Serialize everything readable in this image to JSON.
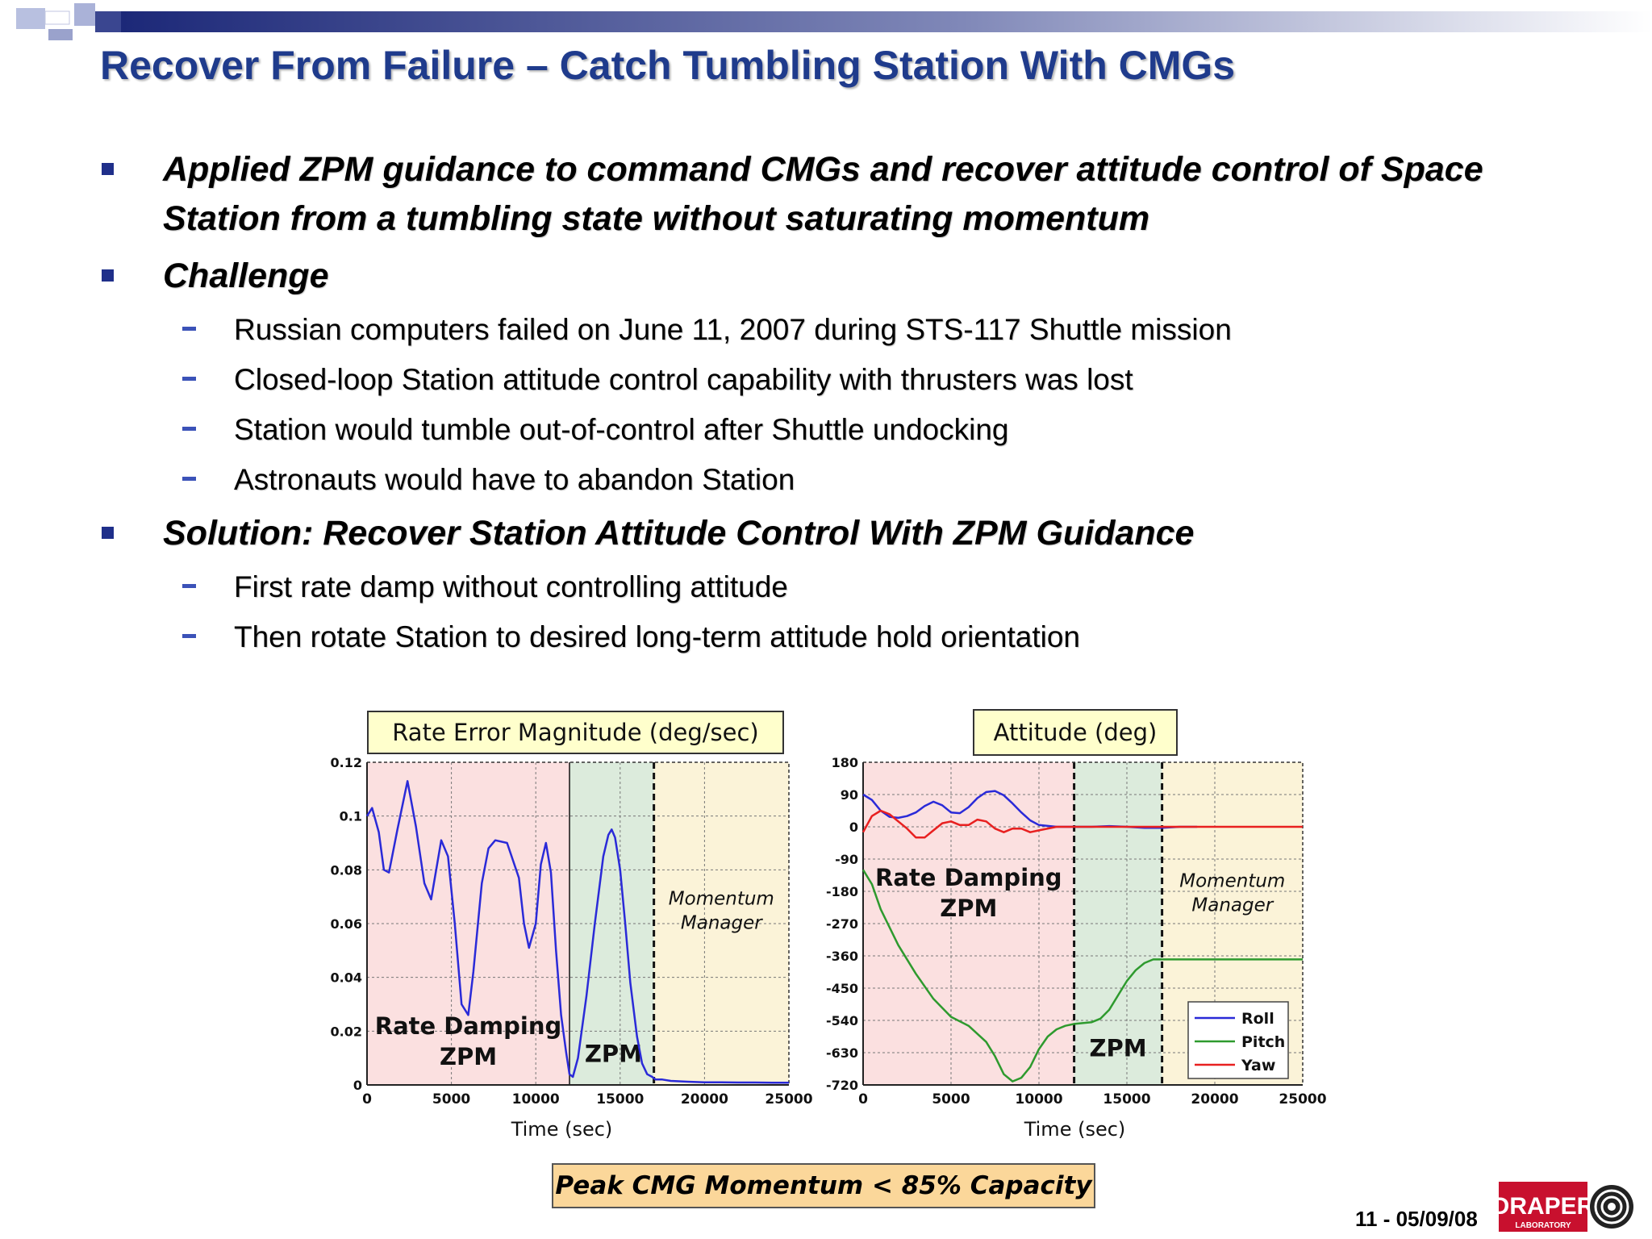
{
  "slide": {
    "title": "Recover From Failure – Catch Tumbling Station With CMGs",
    "bullets": [
      {
        "text": "Applied ZPM guidance to command CMGs and recover attitude control of Space Station from a tumbling state without saturating momentum",
        "subs": []
      },
      {
        "text": "Challenge",
        "subs": [
          "Russian computers failed on June 11, 2007 during STS-117 Shuttle mission",
          "Closed-loop Station attitude control capability with thrusters was lost",
          "Station would tumble out-of-control after Shuttle undocking",
          "Astronauts would have to abandon Station"
        ]
      },
      {
        "text": "Solution: Recover Station Attitude Control With ZPM Guidance",
        "subs": [
          "First rate damp without controlling attitude",
          "Then rotate Station to desired long-term attitude hold orientation"
        ]
      }
    ],
    "footer_box": "Peak CMG Momentum < 85% Capacity",
    "slide_number": "11 - 05/09/08",
    "logo_text": "DRAPER",
    "logo_subtext": "LABORATORY"
  },
  "colors": {
    "title": "#1f3b8c",
    "rate_damping_region": "#fbe0e0",
    "zpm_region": "#dcebdc",
    "momentum_manager_region": "#fbf3d8",
    "roll": "#2a2ad8",
    "pitch": "#2e9a2e",
    "yaw": "#e82020",
    "rate_line": "#2a2ad8"
  },
  "chart_data": [
    {
      "type": "line",
      "title": "Rate Error Magnitude (deg/sec)",
      "xlabel": "Time (sec)",
      "ylabel": "",
      "xlim": [
        0,
        25000
      ],
      "ylim": [
        0,
        0.12
      ],
      "xticks": [
        0,
        5000,
        10000,
        15000,
        20000,
        25000
      ],
      "yticks": [
        0,
        0.02,
        0.04,
        0.06,
        0.08,
        0.1,
        0.12
      ],
      "xtick_labels": [
        "0",
        "5000",
        "10000",
        "15000",
        "20000",
        "25000"
      ],
      "ytick_labels": [
        "0",
        "0.02",
        "0.04",
        "0.06",
        "0.08",
        "0.1",
        "0.12"
      ],
      "grid": true,
      "regions": [
        {
          "label": "Rate Damping ZPM",
          "lines": [
            "Rate Damping",
            "ZPM"
          ],
          "x0": 0,
          "x1": 12000,
          "kind": "rate_damping",
          "label_x": 6000,
          "label_y": 0.0075
        },
        {
          "label": "ZPM",
          "lines": [
            "ZPM"
          ],
          "x0": 12000,
          "x1": 17000,
          "kind": "zpm",
          "label_x": 14600,
          "label_y": 0.0085
        },
        {
          "label": "Momentum Manager",
          "lines": [
            "Momentum",
            "Manager"
          ],
          "x0": 17000,
          "x1": 25000,
          "kind": "momentum_manager",
          "label_x": 21000,
          "label_y": 0.058
        }
      ],
      "series": [
        {
          "name": "",
          "color_key": "rate_line",
          "x": [
            0,
            300,
            700,
            1000,
            1300,
            1800,
            2400,
            2900,
            3400,
            3800,
            4400,
            4800,
            5200,
            5600,
            6000,
            6300,
            6800,
            7200,
            7600,
            8300,
            9000,
            9300,
            9600,
            10000,
            10300,
            10600,
            10900,
            11200,
            11500,
            11800,
            12000,
            12200,
            12500,
            13000,
            13500,
            14000,
            14300,
            14500,
            14700,
            15000,
            15300,
            15600,
            16000,
            16300,
            16600,
            16900,
            17100,
            17500,
            18000,
            19000,
            20000,
            21000,
            22000,
            23000,
            24000,
            25000
          ],
          "y": [
            0.1,
            0.103,
            0.094,
            0.08,
            0.079,
            0.095,
            0.113,
            0.096,
            0.075,
            0.069,
            0.091,
            0.085,
            0.06,
            0.03,
            0.026,
            0.042,
            0.075,
            0.088,
            0.091,
            0.09,
            0.077,
            0.06,
            0.051,
            0.06,
            0.082,
            0.09,
            0.079,
            0.05,
            0.026,
            0.012,
            0.004,
            0.003,
            0.01,
            0.033,
            0.06,
            0.085,
            0.093,
            0.095,
            0.092,
            0.08,
            0.06,
            0.038,
            0.018,
            0.008,
            0.004,
            0.003,
            0.002,
            0.002,
            0.0015,
            0.0012,
            0.001,
            0.001,
            0.0009,
            0.0009,
            0.0008,
            0.0008
          ]
        }
      ]
    },
    {
      "type": "line",
      "title": "Attitude (deg)",
      "xlabel": "Time (sec)",
      "ylabel": "",
      "xlim": [
        0,
        25000
      ],
      "ylim": [
        -720,
        180
      ],
      "xticks": [
        0,
        5000,
        10000,
        15000,
        20000,
        25000
      ],
      "yticks": [
        -720,
        -630,
        -540,
        -450,
        -360,
        -270,
        -180,
        -90,
        0,
        90,
        180
      ],
      "xtick_labels": [
        "0",
        "5000",
        "10000",
        "15000",
        "20000",
        "25000"
      ],
      "ytick_labels": [
        "-720",
        "-630",
        "-540",
        "-450",
        "-360",
        "-270",
        "-180",
        "-90",
        "0",
        "90",
        "180"
      ],
      "grid": true,
      "legend": {
        "position": "bottom-right",
        "entries": [
          "Roll",
          "Pitch",
          "Yaw"
        ]
      },
      "regions": [
        {
          "label": "Rate Damping ZPM",
          "lines": [
            "Rate Damping",
            "ZPM"
          ],
          "x0": 0,
          "x1": 12000,
          "kind": "rate_damping",
          "label_x": 6000,
          "label_y": -250
        },
        {
          "label": "ZPM",
          "lines": [
            "ZPM"
          ],
          "x0": 12000,
          "x1": 17000,
          "kind": "zpm",
          "label_x": 14500,
          "label_y": -640
        },
        {
          "label": "Momentum Manager",
          "lines": [
            "Momentum",
            "Manager"
          ],
          "x0": 17000,
          "x1": 25000,
          "kind": "momentum_manager",
          "label_x": 21000,
          "label_y": -235
        }
      ],
      "series": [
        {
          "name": "Roll",
          "color_key": "roll",
          "x": [
            0,
            500,
            1000,
            1500,
            2000,
            2500,
            3000,
            3500,
            4000,
            4500,
            5000,
            5500,
            6000,
            6500,
            7000,
            7500,
            8000,
            8500,
            9000,
            9500,
            10000,
            11000,
            12000,
            13000,
            14000,
            15000,
            16000,
            17000,
            18000,
            19000
          ],
          "y": [
            90,
            75,
            45,
            28,
            25,
            30,
            40,
            58,
            70,
            60,
            40,
            38,
            55,
            80,
            97,
            100,
            88,
            65,
            40,
            18,
            5,
            0,
            0,
            0,
            2,
            0,
            -3,
            -3,
            0,
            0
          ]
        },
        {
          "name": "Pitch",
          "color_key": "pitch",
          "x": [
            0,
            500,
            1000,
            2000,
            3000,
            4000,
            5000,
            6000,
            7000,
            7500,
            8000,
            8500,
            9000,
            9500,
            10000,
            10500,
            11000,
            11500,
            12000,
            13000,
            13500,
            14000,
            14500,
            15000,
            15500,
            16000,
            16500,
            17000,
            18000,
            20000,
            25000
          ],
          "y": [
            -120,
            -160,
            -230,
            -330,
            -410,
            -480,
            -530,
            -555,
            -600,
            -640,
            -690,
            -710,
            -700,
            -670,
            -620,
            -585,
            -565,
            -555,
            -550,
            -545,
            -535,
            -510,
            -470,
            -430,
            -400,
            -380,
            -370,
            -370,
            -370,
            -370,
            -370
          ]
        },
        {
          "name": "Yaw",
          "color_key": "yaw",
          "x": [
            0,
            500,
            1000,
            1500,
            2000,
            2500,
            3000,
            3500,
            4000,
            4500,
            5000,
            5500,
            6000,
            6500,
            7000,
            7500,
            8000,
            8500,
            9000,
            9500,
            10000,
            11000,
            12000,
            25000
          ],
          "y": [
            -15,
            30,
            45,
            35,
            15,
            -5,
            -30,
            -30,
            -10,
            10,
            15,
            5,
            5,
            20,
            15,
            -5,
            -15,
            -5,
            -5,
            -15,
            -10,
            0,
            0,
            0
          ]
        }
      ]
    }
  ]
}
